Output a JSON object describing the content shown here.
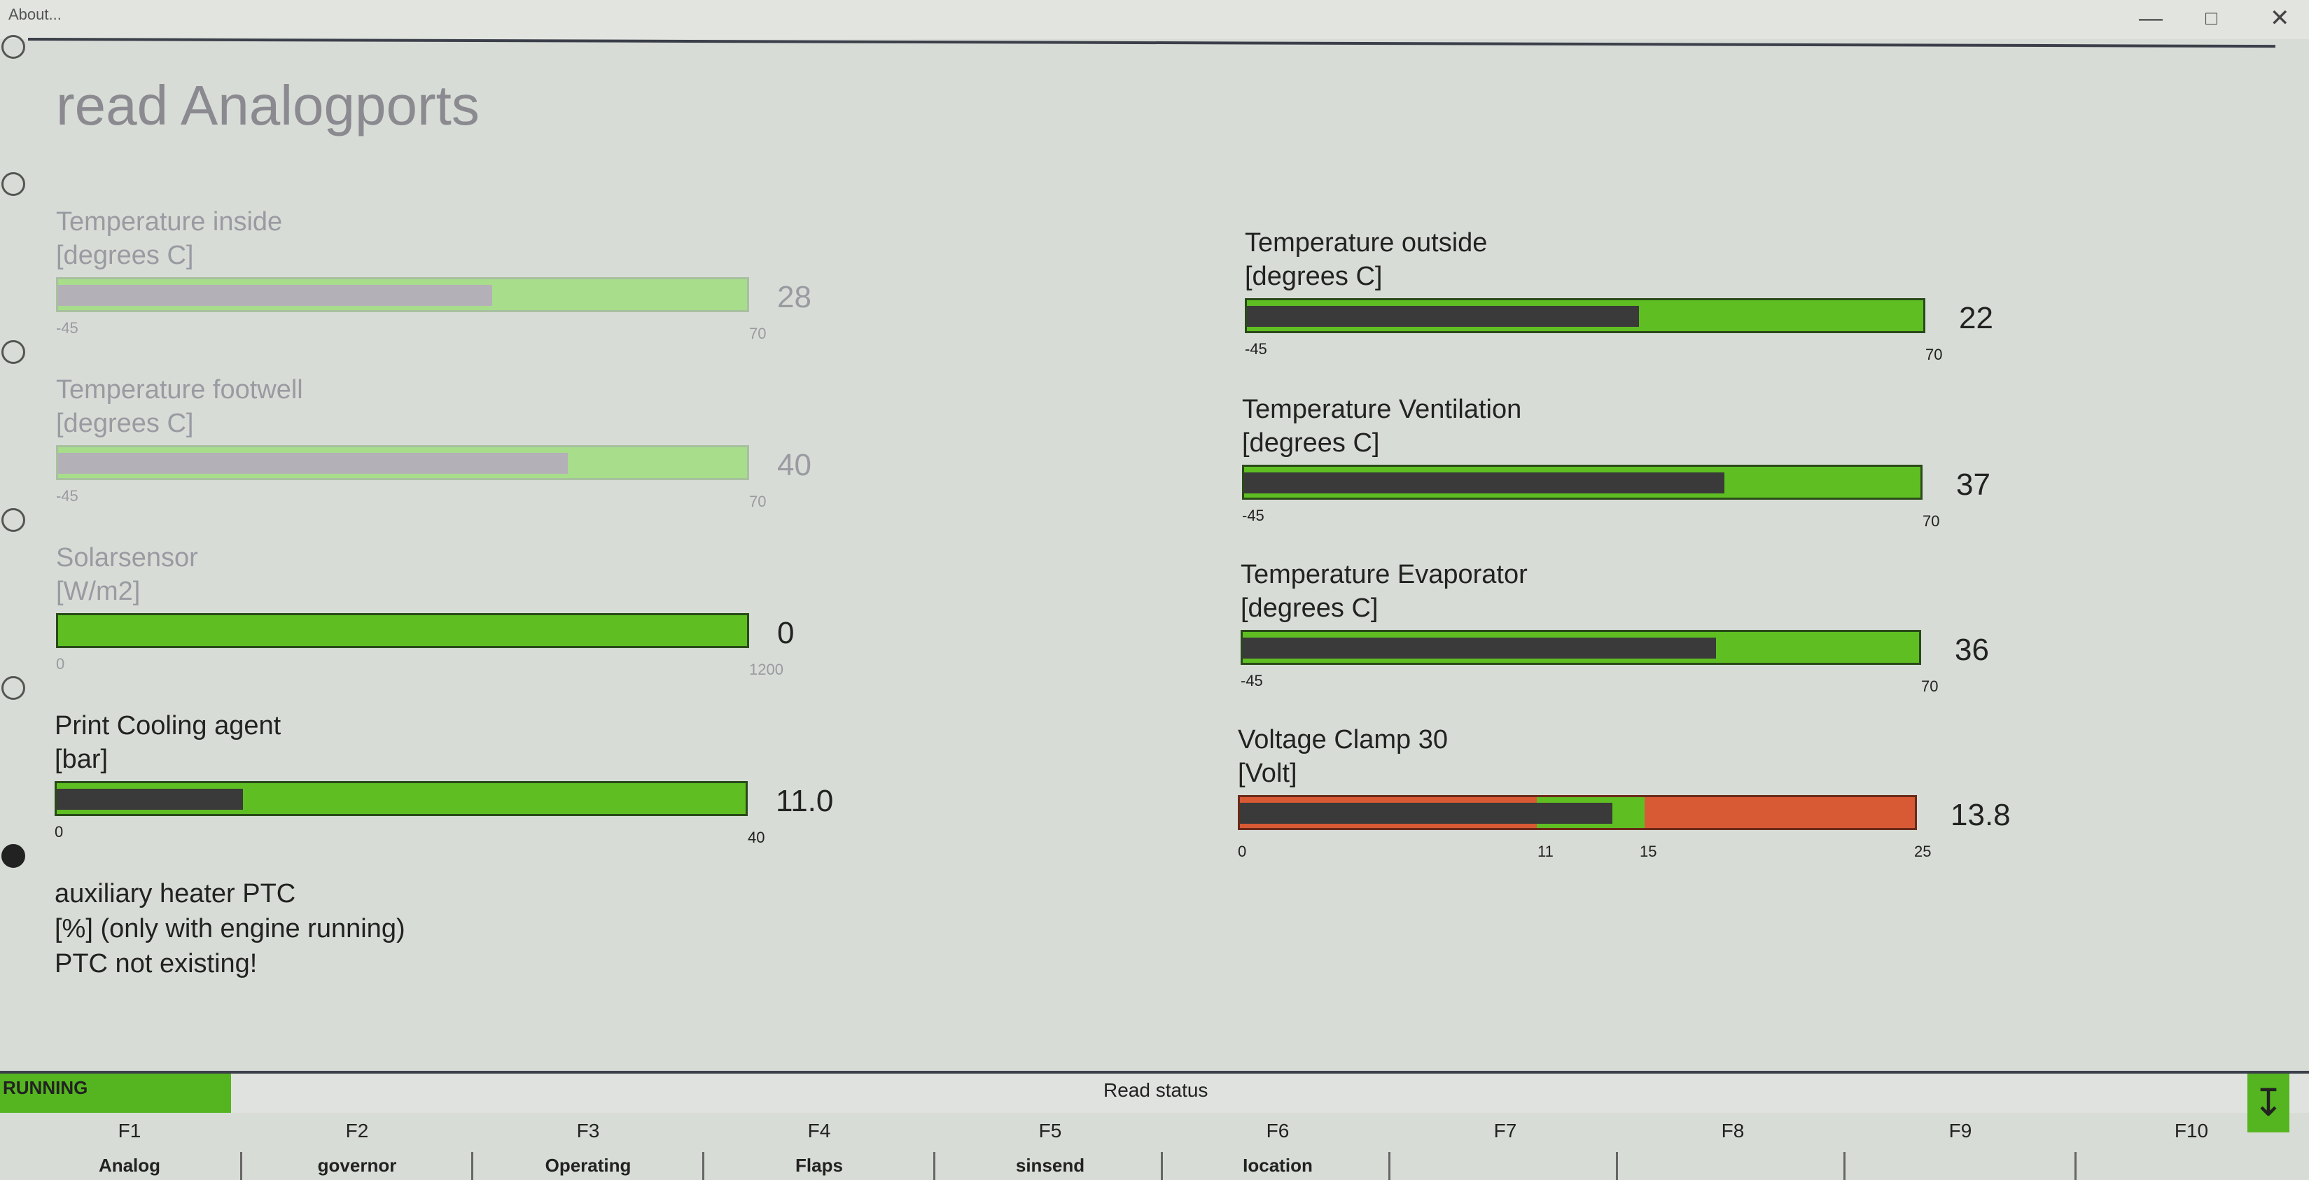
{
  "window": {
    "about": "About...",
    "minimize_icon": "minimize-icon",
    "maximize_icon": "maximize-icon",
    "close_icon": "close-icon"
  },
  "page": {
    "title": "read  Analogports"
  },
  "gauges": {
    "temp_inside": {
      "label": "Temperature inside",
      "unit": "[degrees C]",
      "min": "-45",
      "max": "70",
      "value": "28",
      "fraction": 0.63
    },
    "temp_footwell": {
      "label": "Temperature footwell",
      "unit": "[degrees C]",
      "min": "-45",
      "max": "70",
      "value": "40",
      "fraction": 0.74
    },
    "solarsensor": {
      "label": "Solarsensor",
      "unit": "[W/m2]",
      "min": "0",
      "max": "1200",
      "value": "0",
      "fraction": 0.0
    },
    "cooling_agent": {
      "label": "Print Cooling agent",
      "unit": "[bar]",
      "min": "0",
      "max": "40",
      "value": "11.0",
      "fraction": 0.27
    },
    "temp_outside": {
      "label": "Temperature outside",
      "unit": "[degrees C]",
      "min": "-45",
      "max": "70",
      "value": "22",
      "fraction": 0.58
    },
    "temp_vent": {
      "label": "Temperature Ventilation",
      "unit": "[degrees C]",
      "min": "-45",
      "max": "70",
      "value": "37",
      "fraction": 0.71
    },
    "temp_evap": {
      "label": "Temperature Evaporator",
      "unit": "[degrees C]",
      "min": "-45",
      "max": "70",
      "value": "36",
      "fraction": 0.7
    },
    "voltage": {
      "label": "Voltage Clamp 30",
      "unit": "[Volt]",
      "min": "0",
      "tick1": "11",
      "tick2": "15",
      "max": "25",
      "value": "13.8",
      "fraction": 0.552
    }
  },
  "aux_heater": {
    "line1": "auxiliary heater PTC",
    "line2": "[%] (only with engine running)",
    "line3": "PTC not existing!"
  },
  "status": {
    "running": "RUNNING",
    "read_status": "Read status",
    "arrow_icon": "down-arrow-icon"
  },
  "fkeys": [
    {
      "key": "F1",
      "label": "Analog"
    },
    {
      "key": "F2",
      "label": "governor"
    },
    {
      "key": "F3",
      "label": "Operating"
    },
    {
      "key": "F4",
      "label": "Flaps"
    },
    {
      "key": "F5",
      "label": "sinsend"
    },
    {
      "key": "F6",
      "label": "Іocation"
    },
    {
      "key": "F7",
      "label": ""
    },
    {
      "key": "F8",
      "label": ""
    },
    {
      "key": "F9",
      "label": ""
    },
    {
      "key": "F10",
      "label": ""
    }
  ],
  "colors": {
    "bar_green": "#5fbf22",
    "bar_fill": "#3a3a3a",
    "warn_red": "#d85a35"
  }
}
